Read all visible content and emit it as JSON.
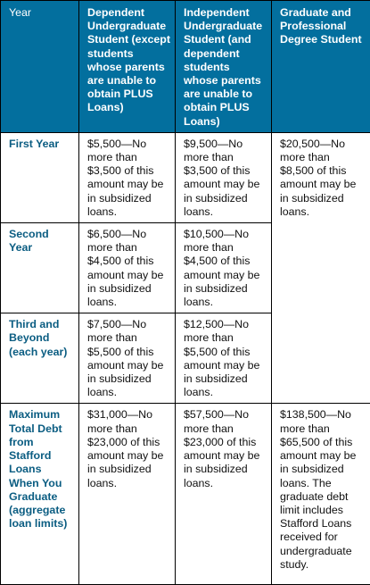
{
  "headers": [
    "Year",
    "Dependent Undergraduate Student (except students whose parents are unable to obtain PLUS Loans)",
    "Independent Undergraduate Student (and dependent students whose parents are unable to obtain PLUS Loans)",
    "Graduate and Professional Degree Student"
  ],
  "rows": [
    {
      "label": "First Year",
      "dependent": "$5,500—No more than $3,500 of this amount may be in subsidized loans.",
      "independent": "$9,500—No more than $3,500 of this amount may be in subsidized loans."
    },
    {
      "label": "Second Year",
      "dependent": "$6,500—No more than $4,500 of this amount may be in subsidized loans.",
      "independent": "$10,500—No more than $4,500 of this amount may be in subsidized loans."
    },
    {
      "label": "Third and Beyond (each year)",
      "dependent": "$7,500—No more than $5,500 of this amount may be in subsidized loans.",
      "independent": "$12,500—No more than $5,500 of this amount may be in subsidized loans."
    },
    {
      "label": "Maximum Total Debt from Stafford Loans When You Graduate (aggregate loan limits)",
      "dependent": "$31,000—No more than $23,000 of this amount may be in subsidized loans.",
      "independent": "$57,500—No more than $23,000 of this amount may be in subsidized loans.",
      "graduate": "$138,500—No more than $65,500 of this amount may be in subsidized loans. The graduate debt limit includes Stafford Loans received for undergraduate study."
    }
  ],
  "graduate_annual": "$20,500—No more than $8,500 of this amount may be in subsidized loans.",
  "colors": {
    "header_background": "#036f9e",
    "header_text": "#ffffff",
    "row_label_text": "#0b5d82",
    "border": "#000000"
  }
}
